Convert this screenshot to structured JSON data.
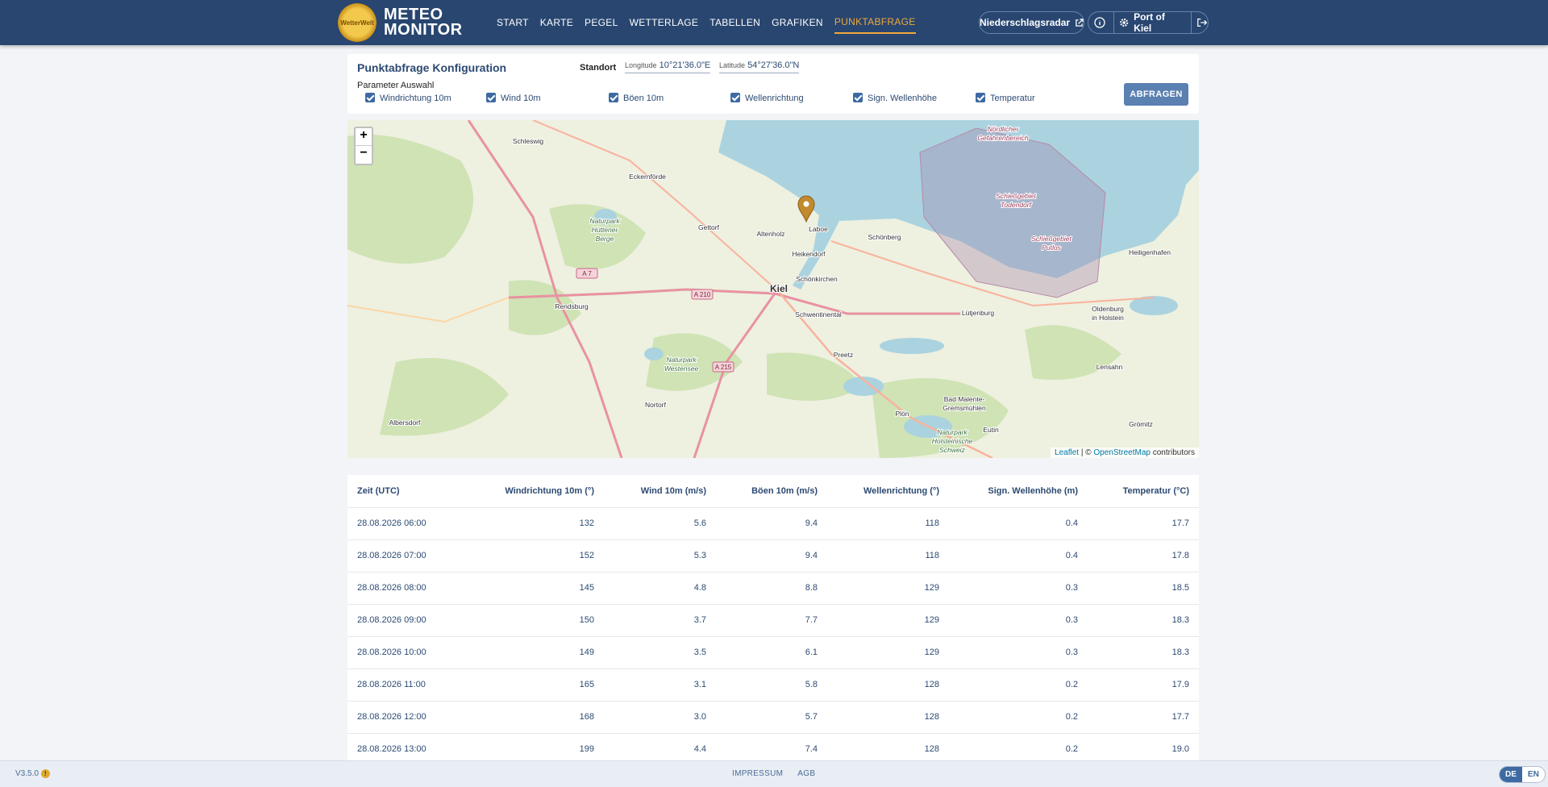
{
  "header": {
    "logo": "WetterWelt",
    "brand": [
      "METEO",
      "MONITOR"
    ],
    "nav": [
      "START",
      "KARTE",
      "PEGEL",
      "WETTERLAGE",
      "TABELLEN",
      "GRAFIKEN",
      "PUNKTABFRAGE"
    ],
    "active_nav": 6,
    "radar": "Niederschlagsradar",
    "location": "Port of Kiel"
  },
  "config": {
    "title": "Punktabfrage Konfiguration",
    "standort_label": "Standort",
    "longitude_label": "Longitude",
    "longitude": "10°21'36.0\"E",
    "latitude_label": "Latitude",
    "latitude": "54°27'36.0\"N",
    "params_label": "Parameter Auswahl",
    "params": [
      {
        "label": "Windrichtung 10m",
        "checked": true
      },
      {
        "label": "Wind 10m",
        "checked": true
      },
      {
        "label": "Böen 10m",
        "checked": true
      },
      {
        "label": "Wellenrichtung",
        "checked": true
      },
      {
        "label": "Sign. Wellenhöhe",
        "checked": true
      },
      {
        "label": "Temperatur",
        "checked": true
      }
    ],
    "button": "ABFRAGEN"
  },
  "map": {
    "zoom_in": "+",
    "zoom_out": "−",
    "labels": [
      [
        "Schleswig"
      ],
      [
        "Eckernförde"
      ],
      [
        "Naturpark",
        "Hüttener",
        "Berge"
      ],
      [
        "Gettorf"
      ],
      [
        "Altenholz"
      ],
      [
        "Laboe"
      ],
      [
        "Schönberg"
      ],
      [
        "Heikendorf"
      ],
      [
        "Kiel"
      ],
      [
        "Schönkirchen"
      ],
      [
        "Rendsburg"
      ],
      [
        "Schwentinental"
      ],
      [
        "Naturpark",
        "Westensee"
      ],
      [
        "Preetz"
      ],
      [
        "Lütjenburg"
      ],
      [
        "Heiligenhafen"
      ],
      [
        "Oldenburg",
        "in Holstein"
      ],
      [
        "Lensahn"
      ],
      [
        "Nortorf"
      ],
      [
        "Albersdorf"
      ],
      [
        "Bad Malente-",
        "Gremsmühlen"
      ],
      [
        "Plön"
      ],
      [
        "Eutin"
      ],
      [
        "Grömitz"
      ],
      [
        "Naturpark",
        "Holsteinische",
        "Schweiz"
      ],
      [
        "Schießgebiet",
        "Todendorf"
      ],
      [
        "Schießgebiet",
        "Putlos"
      ],
      [
        "Nördlicher",
        "Gefahrenbereich"
      ]
    ],
    "roads": [
      "A 7",
      "A 210",
      "A 215"
    ],
    "attribution": {
      "leaflet": "Leaflet",
      "sep": "| ©",
      "osm": "OpenStreetMap",
      "rest": "contributors"
    }
  },
  "table": {
    "columns": [
      "Zeit (UTC)",
      "Windrichtung 10m (°)",
      "Wind 10m (m/s)",
      "Böen 10m (m/s)",
      "Wellenrichtung (°)",
      "Sign. Wellenhöhe (m)",
      "Temperatur (°C)"
    ],
    "rows": [
      [
        "28.08.2026 06:00",
        "132",
        "5.6",
        "9.4",
        "118",
        "0.4",
        "17.7"
      ],
      [
        "28.08.2026 07:00",
        "152",
        "5.3",
        "9.4",
        "118",
        "0.4",
        "17.8"
      ],
      [
        "28.08.2026 08:00",
        "145",
        "4.8",
        "8.8",
        "129",
        "0.3",
        "18.5"
      ],
      [
        "28.08.2026 09:00",
        "150",
        "3.7",
        "7.7",
        "129",
        "0.3",
        "18.3"
      ],
      [
        "28.08.2026 10:00",
        "149",
        "3.5",
        "6.1",
        "129",
        "0.3",
        "18.3"
      ],
      [
        "28.08.2026 11:00",
        "165",
        "3.1",
        "5.8",
        "128",
        "0.2",
        "17.9"
      ],
      [
        "28.08.2026 12:00",
        "168",
        "3.0",
        "5.7",
        "128",
        "0.2",
        "17.7"
      ],
      [
        "28.08.2026 13:00",
        "199",
        "4.4",
        "7.4",
        "128",
        "0.2",
        "19.0"
      ]
    ]
  },
  "footer": {
    "version": "V3.5.0",
    "links": [
      "IMPRESSUM",
      "AGB"
    ],
    "langs": [
      "DE",
      "EN"
    ],
    "active_lang": 0
  }
}
